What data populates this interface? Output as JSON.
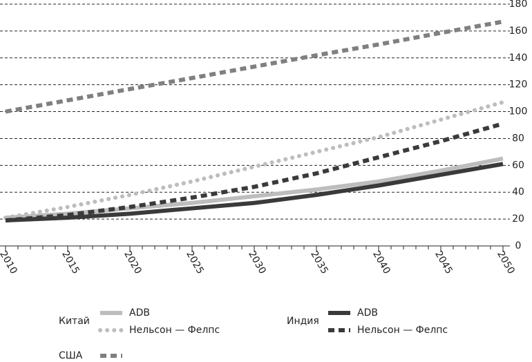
{
  "chart_data": {
    "type": "line",
    "x": [
      2010,
      2015,
      2020,
      2025,
      2030,
      2035,
      2040,
      2045,
      2050
    ],
    "xlim": [
      2010,
      2050
    ],
    "xticks": [
      2010,
      2015,
      2020,
      2025,
      2030,
      2035,
      2040,
      2045,
      2050
    ],
    "ylim": [
      0,
      180
    ],
    "yticks": [
      0,
      20,
      40,
      60,
      80,
      100,
      120,
      140,
      160,
      180
    ],
    "grid": true,
    "series": [
      {
        "group": "Китай",
        "name": "ADB",
        "color": "#bdbdbd",
        "style": "solid",
        "values": [
          21,
          24,
          28,
          32,
          37,
          42,
          48,
          56,
          65
        ]
      },
      {
        "group": "Китай",
        "name": "Нельсон — Фелпс",
        "color": "#bdbdbd",
        "style": "dotted",
        "values": [
          21,
          29,
          38,
          48,
          59,
          70,
          81,
          94,
          107
        ]
      },
      {
        "group": "Индия",
        "name": "ADB",
        "color": "#3a3a3a",
        "style": "solid",
        "values": [
          19,
          21,
          24,
          28,
          32,
          38,
          45,
          53,
          61
        ]
      },
      {
        "group": "Индия",
        "name": "Нельсон — Фелпс",
        "color": "#3a3a3a",
        "style": "dashed",
        "values": [
          19,
          23,
          29,
          36,
          44,
          54,
          66,
          78,
          91
        ]
      },
      {
        "group": "США",
        "color": "#808080",
        "style": "dashed",
        "values": [
          100,
          108.4,
          116.8,
          125,
          133.5,
          141.9,
          150,
          158.6,
          167
        ]
      }
    ]
  }
}
